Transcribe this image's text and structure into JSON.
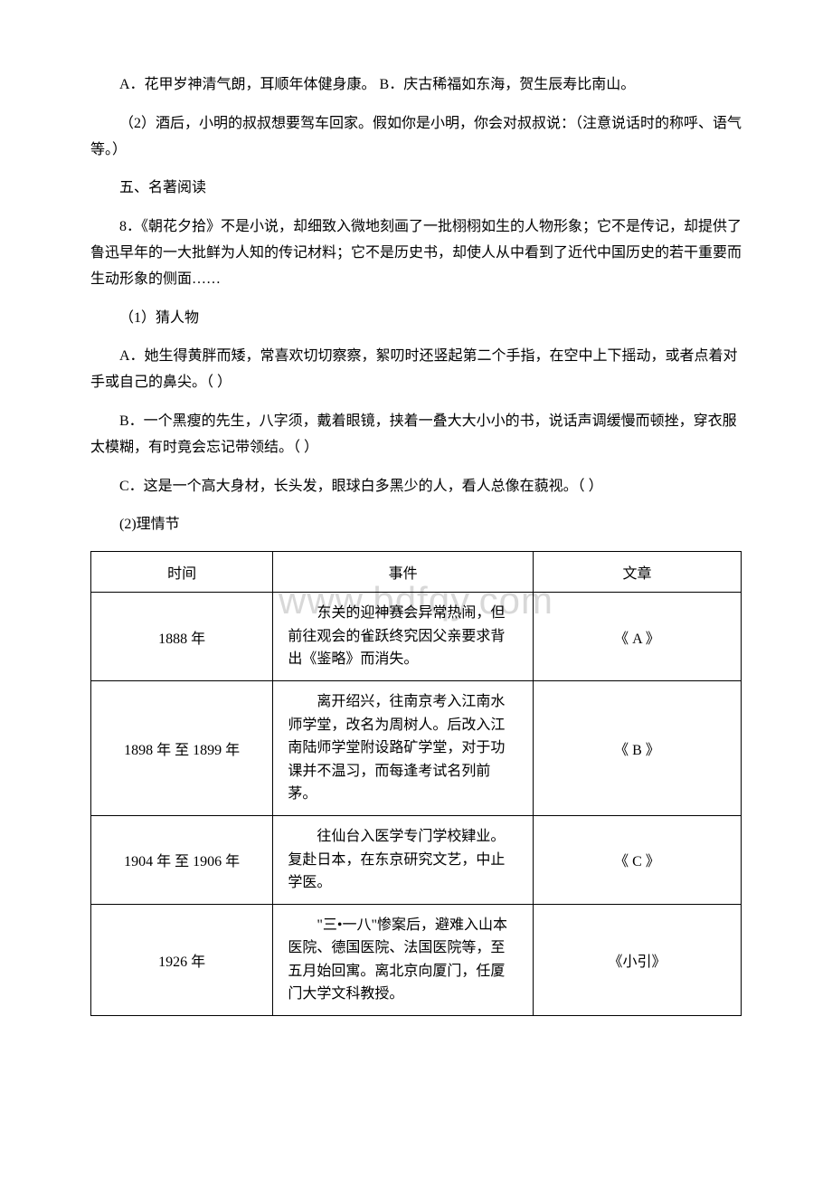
{
  "watermark": "www.bdfqy.com",
  "paragraphs": {
    "p1": "A．花甲岁神清气朗，耳顺年体健身康。 B．庆古稀福如东海，贺生辰寿比南山。",
    "p2": "（2）酒后，小明的叔叔想要驾车回家。假如你是小明，你会对叔叔说：（注意说话时的称呼、语气等。）",
    "p3": "五、名著阅读",
    "p4": "8．《朝花夕拾》不是小说，却细致入微地刻画了一批栩栩如生的人物形象；它不是传记，却提供了鲁迅早年的一大批鲜为人知的传记材料；它不是历史书，却使人从中看到了近代中国历史的若干重要而生动形象的侧面……",
    "p5": "（1）猜人物",
    "p6": "A．她生得黄胖而矮，常喜欢切切察察，絮叨时还竖起第二个手指，在空中上下摇动，或者点着对手或自己的鼻尖。（ ）",
    "p7": "B．一个黑瘦的先生，八字须，戴着眼镜，挟着一叠大大小小的书，说话声调缓慢而顿挫，穿衣服太模糊，有时竟会忘记带领结。（ ）",
    "p8": "C．这是一个高大身材，长头发，眼球白多黑少的人，看人总像在藐视。（ ）",
    "p9": "(2)理情节"
  },
  "table": {
    "headers": {
      "col1": "时间",
      "col2": "事件",
      "col3": "文章"
    },
    "rows": [
      {
        "time": "1888 年",
        "event": "东关的迎神赛会异常热闹，但前往观会的雀跃终究因父亲要求背出《鉴略》而消失。",
        "article": "《 A 》"
      },
      {
        "time": "1898 年 至 1899 年",
        "event": "离开绍兴，往南京考入江南水师学堂，改名为周树人。后改入江南陆师学堂附设路矿学堂，对于功课并不温习，而每逢考试名列前茅。",
        "article": "《 B 》"
      },
      {
        "time": "1904 年 至 1906 年",
        "event": "往仙台入医学专门学校肄业。复赴日本，在东京研究文艺，中止学医。",
        "article": "《 C 》"
      },
      {
        "time": "1926 年",
        "event": "\"三•一八\"惨案后，避难入山本医院、德国医院、法国医院等，至五月始回寓。离北京向厦门，任厦门大学文科教授。",
        "article": "《小引》"
      }
    ]
  }
}
